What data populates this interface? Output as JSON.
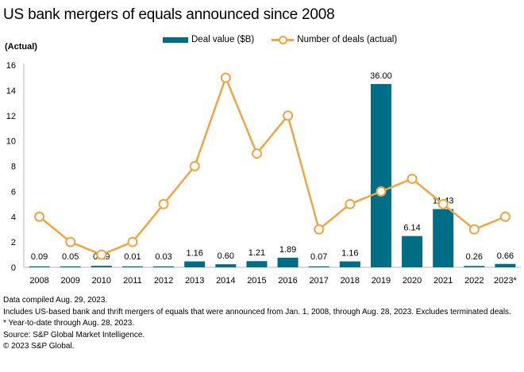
{
  "chart_data": {
    "type": "bar+line",
    "title": "US bank mergers of equals announced since 2008",
    "ylabel": "(Actual)",
    "xlabel": "",
    "ylim": [
      0,
      16
    ],
    "yticks": [
      0,
      2,
      4,
      6,
      8,
      10,
      12,
      14,
      16
    ],
    "grid": false,
    "legend_position": "top-center",
    "categories": [
      "2008",
      "2009",
      "2010",
      "2011",
      "2012",
      "2013",
      "2014",
      "2015",
      "2016",
      "2017",
      "2018",
      "2019",
      "2020",
      "2021",
      "2022",
      "2023*"
    ],
    "series": [
      {
        "name": "Deal value ($B)",
        "type": "bar",
        "axis": "secondary (hidden)",
        "color": "#006d87",
        "values": [
          0.09,
          0.05,
          0.29,
          0.01,
          0.03,
          1.16,
          0.6,
          1.21,
          1.89,
          0.07,
          1.16,
          36.0,
          6.14,
          11.43,
          0.26,
          0.66
        ],
        "labels": [
          "0.09",
          "0.05",
          "0.29",
          "0.01",
          "0.03",
          "1.16",
          "0.60",
          "1.21",
          "1.89",
          "0.07",
          "1.16",
          "36.00",
          "6.14",
          "11.43",
          "0.26",
          "0.66"
        ]
      },
      {
        "name": "Number of deals (actual)",
        "type": "line",
        "axis": "primary",
        "color": "#f2a346",
        "values": [
          4,
          2,
          1,
          2,
          5,
          8,
          15,
          9,
          12,
          3,
          5,
          6,
          7,
          5,
          3,
          4
        ]
      }
    ]
  },
  "notes": [
    "Data compiled Aug. 29, 2023.",
    "Includes US-based bank and thrift mergers of equals that were announced from Jan. 1, 2008, through Aug. 28, 2023. Excludes terminated deals.",
    "* Year-to-date through Aug. 28, 2023.",
    "Source: S&P Global Market Intelligence.",
    "© 2023 S&P Global."
  ]
}
